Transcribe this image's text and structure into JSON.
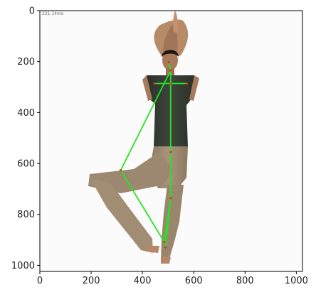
{
  "chart_data": {
    "type": "image",
    "inference_time_label": "221,14ms",
    "xlim": [
      0,
      1024
    ],
    "ylim": [
      1024,
      0
    ],
    "x_ticks": [
      {
        "value": 0,
        "label": "0"
      },
      {
        "value": 200,
        "label": "200"
      },
      {
        "value": 400,
        "label": "400"
      },
      {
        "value": 600,
        "label": "600"
      },
      {
        "value": 800,
        "label": "800"
      },
      {
        "value": 1000,
        "label": "1000"
      }
    ],
    "y_ticks": [
      {
        "value": 0,
        "label": "0"
      },
      {
        "value": 200,
        "label": "200"
      },
      {
        "value": 400,
        "label": "400"
      },
      {
        "value": 600,
        "label": "600"
      },
      {
        "value": 800,
        "label": "800"
      },
      {
        "value": 1000,
        "label": "1000"
      }
    ],
    "skeleton_color": "#22e622",
    "keypoints": {
      "head": [
        503,
        203
      ],
      "neck": [
        510,
        235
      ],
      "left_shoulder": [
        447,
        286
      ],
      "right_shoulder": [
        573,
        286
      ],
      "mid_shoulder": [
        510,
        288
      ],
      "hip": [
        510,
        555
      ],
      "raised_knee": [
        315,
        627
      ],
      "raised_ankle": [
        485,
        908
      ],
      "standing_knee": [
        510,
        736
      ],
      "standing_ankle": [
        490,
        930
      ]
    },
    "skeleton_edges": [
      [
        "head",
        "neck"
      ],
      [
        "left_shoulder",
        "right_shoulder"
      ],
      [
        "neck",
        "mid_shoulder"
      ],
      [
        "mid_shoulder",
        "hip"
      ],
      [
        "hip",
        "standing_knee"
      ],
      [
        "standing_knee",
        "standing_ankle"
      ],
      [
        "neck",
        "raised_knee"
      ],
      [
        "raised_knee",
        "raised_ankle"
      ],
      [
        "raised_ankle",
        "standing_knee"
      ]
    ]
  }
}
